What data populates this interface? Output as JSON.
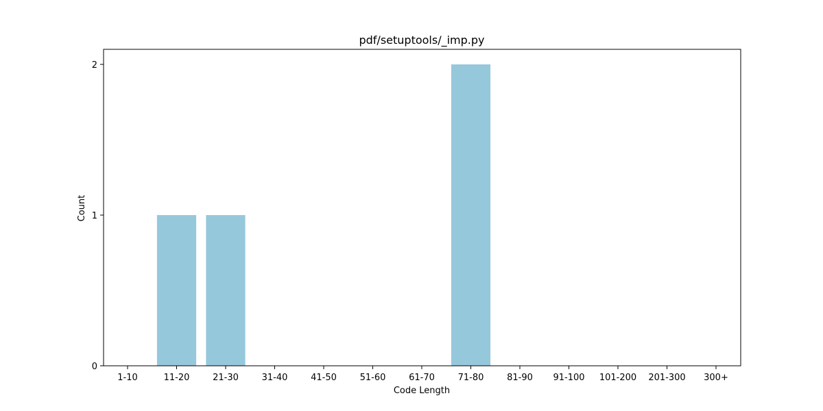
{
  "chart_data": {
    "type": "bar",
    "title": "pdf/setuptools/_imp.py",
    "xlabel": "Code Length",
    "ylabel": "Count",
    "categories": [
      "1-10",
      "11-20",
      "21-30",
      "31-40",
      "41-50",
      "51-60",
      "61-70",
      "71-80",
      "81-90",
      "91-100",
      "101-200",
      "201-300",
      "300+"
    ],
    "values": [
      0,
      1,
      1,
      0,
      0,
      0,
      0,
      2,
      0,
      0,
      0,
      0,
      0
    ],
    "yticks": [
      "0",
      "1",
      "2"
    ],
    "ylim": [
      0,
      2.1
    ],
    "grid": false,
    "legend": "none",
    "bar_color": "#96c8dc"
  }
}
